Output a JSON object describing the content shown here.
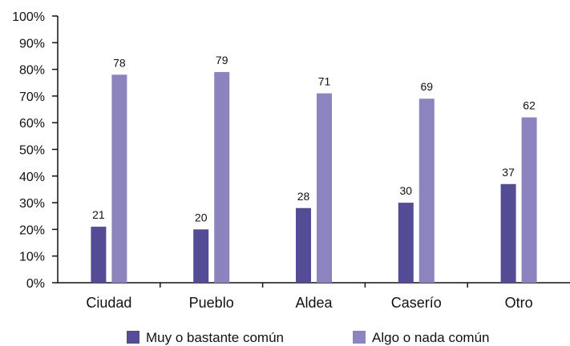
{
  "chart_data": {
    "type": "bar",
    "categories": [
      "Ciudad",
      "Pueblo",
      "Aldea",
      "Caserío",
      "Otro"
    ],
    "series": [
      {
        "name": "Muy o bastante común",
        "values": [
          21,
          20,
          28,
          30,
          37
        ],
        "color": "#544d95"
      },
      {
        "name": "Algo o nada común",
        "values": [
          78,
          79,
          71,
          69,
          62
        ],
        "color": "#8b84bf"
      }
    ],
    "y_ticks": [
      "0%",
      "10%",
      "20%",
      "30%",
      "40%",
      "50%",
      "60%",
      "70%",
      "80%",
      "90%",
      "100%"
    ],
    "ylim": [
      0,
      100
    ],
    "grid": false,
    "legend_position": "bottom"
  }
}
